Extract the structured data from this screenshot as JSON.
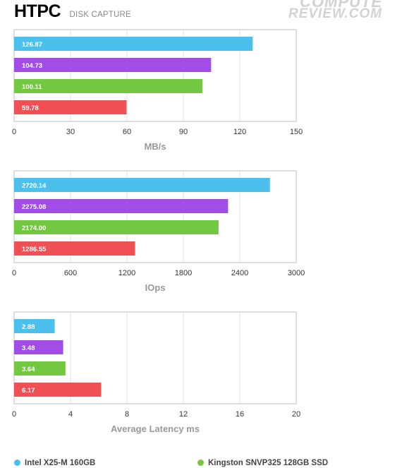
{
  "header": {
    "title": "HTPC",
    "subtitle": "DISK CAPTURE",
    "logo_line1": "COMPUTE",
    "logo_line2": "REVIEW.COM"
  },
  "colors": {
    "series": [
      "#4cc0ec",
      "#a24de8",
      "#73c842",
      "#ef5054"
    ],
    "grid": "#e6e6e6",
    "frame": "#bdbdbd",
    "tick": "#333333",
    "axis_label": "#999999"
  },
  "legend": [
    {
      "label": "Intel X25-M 160GB",
      "color": "#4cc0ec"
    },
    {
      "label": "Kingston SNVP325 128GB SSD",
      "color": "#73c842"
    }
  ],
  "chart_data": [
    {
      "type": "bar",
      "orientation": "horizontal",
      "xlabel": "MB/s",
      "xlim": [
        0,
        150
      ],
      "ticks": [
        "0",
        "30",
        "60",
        "90",
        "120",
        "150"
      ],
      "values": [
        126.87,
        104.73,
        100.11,
        59.78
      ],
      "labels": [
        "126.87",
        "104.73",
        "100.11",
        "59.78"
      ],
      "grid": true
    },
    {
      "type": "bar",
      "orientation": "horizontal",
      "xlabel": "IOps",
      "xlim": [
        0,
        3000
      ],
      "ticks": [
        "0",
        "600",
        "1200",
        "1800",
        "2400",
        "3000"
      ],
      "values": [
        2720.14,
        2275.08,
        2174.0,
        1286.55
      ],
      "labels": [
        "2720.14",
        "2275.08",
        "2174.00",
        "1286.55"
      ],
      "grid": true
    },
    {
      "type": "bar",
      "orientation": "horizontal",
      "xlabel": "Average Latency ms",
      "xlim": [
        0,
        20
      ],
      "ticks": [
        "0",
        "4",
        "8",
        "12",
        "16",
        "20"
      ],
      "values": [
        2.88,
        3.48,
        3.64,
        6.17
      ],
      "labels": [
        "2.88",
        "3.48",
        "3.64",
        "6.17"
      ],
      "grid": true
    }
  ]
}
